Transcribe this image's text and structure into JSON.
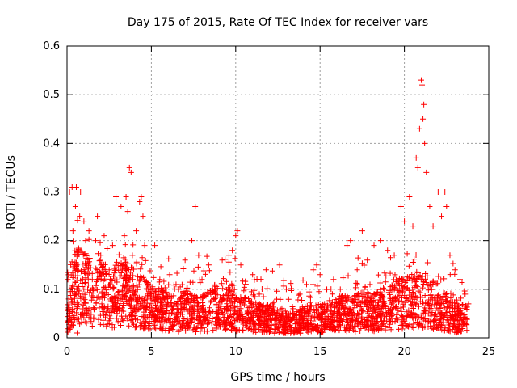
{
  "chart_data": {
    "type": "scatter",
    "title": "Day 175 of 2015, Rate Of TEC Index for receiver vars",
    "xlabel": "GPS time / hours",
    "ylabel": "ROTI / TECUs",
    "xlim": [
      0,
      25
    ],
    "ylim": [
      0,
      0.6
    ],
    "x_ticks": [
      "0",
      "5",
      "10",
      "15",
      "20",
      "25"
    ],
    "y_ticks": [
      "0",
      "0.1",
      "0.2",
      "0.3",
      "0.4",
      "0.5",
      "0.6"
    ],
    "grid": true,
    "marker": "plus",
    "marker_color": "#ff0000",
    "series": [
      {
        "name": "ROTI",
        "points": [
          [
            0.05,
            0.12
          ],
          [
            0.1,
            0.08
          ],
          [
            0.15,
            0.3
          ],
          [
            0.2,
            0.02
          ],
          [
            0.3,
            0.31
          ],
          [
            0.35,
            0.22
          ],
          [
            0.45,
            0.15
          ],
          [
            0.5,
            0.27
          ],
          [
            0.55,
            0.31
          ],
          [
            0.6,
            0.01
          ],
          [
            0.7,
            0.18
          ],
          [
            0.75,
            0.25
          ],
          [
            0.8,
            0.3
          ],
          [
            0.9,
            0.09
          ],
          [
            1.0,
            0.24
          ],
          [
            1.1,
            0.2
          ],
          [
            1.2,
            0.05
          ],
          [
            1.3,
            0.22
          ],
          [
            1.5,
            0.12
          ],
          [
            1.7,
            0.2
          ],
          [
            1.8,
            0.25
          ],
          [
            2.0,
            0.17
          ],
          [
            2.2,
            0.21
          ],
          [
            2.5,
            0.14
          ],
          [
            2.7,
            0.19
          ],
          [
            2.9,
            0.29
          ],
          [
            3.0,
            0.08
          ],
          [
            3.2,
            0.27
          ],
          [
            3.4,
            0.21
          ],
          [
            3.5,
            0.29
          ],
          [
            3.6,
            0.26
          ],
          [
            3.7,
            0.35
          ],
          [
            3.8,
            0.34
          ],
          [
            3.9,
            0.12
          ],
          [
            4.1,
            0.22
          ],
          [
            4.3,
            0.28
          ],
          [
            4.4,
            0.29
          ],
          [
            4.5,
            0.25
          ],
          [
            4.6,
            0.19
          ],
          [
            4.8,
            0.1
          ],
          [
            5.0,
            0.09
          ],
          [
            5.2,
            0.19
          ],
          [
            5.5,
            0.12
          ],
          [
            5.8,
            0.08
          ],
          [
            6.0,
            0.07
          ],
          [
            6.3,
            0.06
          ],
          [
            6.6,
            0.1
          ],
          [
            7.0,
            0.16
          ],
          [
            7.4,
            0.2
          ],
          [
            7.6,
            0.27
          ],
          [
            7.8,
            0.17
          ],
          [
            8.0,
            0.12
          ],
          [
            8.4,
            0.15
          ],
          [
            8.8,
            0.1
          ],
          [
            9.2,
            0.16
          ],
          [
            9.6,
            0.17
          ],
          [
            9.8,
            0.18
          ],
          [
            10.0,
            0.21
          ],
          [
            10.1,
            0.22
          ],
          [
            10.3,
            0.15
          ],
          [
            10.6,
            0.1
          ],
          [
            11.0,
            0.13
          ],
          [
            11.4,
            0.09
          ],
          [
            11.8,
            0.14
          ],
          [
            12.2,
            0.07
          ],
          [
            12.6,
            0.15
          ],
          [
            13.0,
            0.1
          ],
          [
            13.4,
            0.06
          ],
          [
            13.8,
            0.09
          ],
          [
            14.2,
            0.11
          ],
          [
            14.6,
            0.14
          ],
          [
            14.8,
            0.15
          ],
          [
            15.0,
            0.13
          ],
          [
            15.4,
            0.1
          ],
          [
            15.8,
            0.12
          ],
          [
            16.2,
            0.1
          ],
          [
            16.6,
            0.19
          ],
          [
            16.8,
            0.2
          ],
          [
            17.2,
            0.14
          ],
          [
            17.5,
            0.22
          ],
          [
            17.8,
            0.16
          ],
          [
            18.2,
            0.19
          ],
          [
            18.6,
            0.2
          ],
          [
            19.0,
            0.18
          ],
          [
            19.4,
            0.17
          ],
          [
            19.8,
            0.27
          ],
          [
            20.0,
            0.24
          ],
          [
            20.3,
            0.29
          ],
          [
            20.5,
            0.23
          ],
          [
            20.7,
            0.37
          ],
          [
            20.8,
            0.35
          ],
          [
            20.9,
            0.43
          ],
          [
            21.0,
            0.53
          ],
          [
            21.05,
            0.52
          ],
          [
            21.1,
            0.45
          ],
          [
            21.15,
            0.48
          ],
          [
            21.2,
            0.4
          ],
          [
            21.3,
            0.34
          ],
          [
            21.5,
            0.27
          ],
          [
            21.7,
            0.23
          ],
          [
            22.0,
            0.3
          ],
          [
            22.2,
            0.25
          ],
          [
            22.4,
            0.3
          ],
          [
            22.5,
            0.27
          ],
          [
            22.7,
            0.17
          ],
          [
            23.0,
            0.14
          ],
          [
            23.3,
            0.12
          ],
          [
            23.6,
            0.09
          ],
          [
            23.8,
            0.07
          ]
        ],
        "noise_points": [
          [
            0.2,
            0.09
          ],
          [
            0.6,
            0.11
          ],
          [
            1.1,
            0.1
          ],
          [
            1.6,
            0.08
          ],
          [
            2.1,
            0.1
          ],
          [
            2.6,
            0.07
          ],
          [
            3.1,
            0.1
          ],
          [
            3.6,
            0.09
          ],
          [
            4.1,
            0.08
          ],
          [
            4.6,
            0.07
          ],
          [
            5.1,
            0.06
          ],
          [
            5.6,
            0.06
          ],
          [
            6.1,
            0.05
          ],
          [
            6.6,
            0.05
          ],
          [
            7.1,
            0.06
          ],
          [
            7.6,
            0.05
          ],
          [
            8.1,
            0.05
          ],
          [
            8.6,
            0.06
          ],
          [
            9.1,
            0.05
          ],
          [
            9.6,
            0.06
          ],
          [
            10.1,
            0.05
          ],
          [
            10.6,
            0.05
          ],
          [
            11.1,
            0.04
          ],
          [
            11.6,
            0.04
          ],
          [
            12.1,
            0.04
          ],
          [
            12.6,
            0.03
          ],
          [
            13.1,
            0.03
          ],
          [
            13.6,
            0.03
          ],
          [
            14.1,
            0.04
          ],
          [
            14.6,
            0.04
          ],
          [
            15.1,
            0.04
          ],
          [
            15.6,
            0.04
          ],
          [
            16.1,
            0.05
          ],
          [
            16.6,
            0.05
          ],
          [
            17.1,
            0.05
          ],
          [
            17.6,
            0.06
          ],
          [
            18.1,
            0.05
          ],
          [
            18.6,
            0.06
          ],
          [
            19.1,
            0.06
          ],
          [
            19.6,
            0.07
          ],
          [
            20.1,
            0.07
          ],
          [
            20.6,
            0.08
          ],
          [
            21.1,
            0.08
          ],
          [
            21.6,
            0.07
          ],
          [
            22.1,
            0.06
          ],
          [
            22.6,
            0.05
          ],
          [
            23.1,
            0.04
          ],
          [
            23.6,
            0.04
          ]
        ]
      }
    ]
  }
}
